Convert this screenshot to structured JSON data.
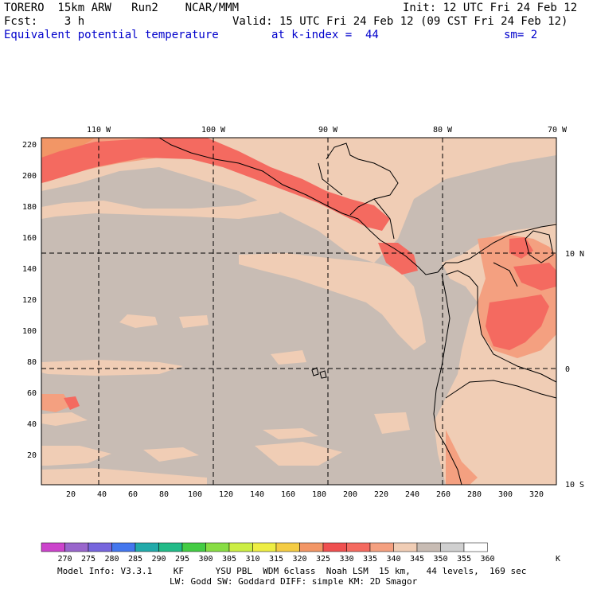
{
  "header": {
    "model": "TORERO  15km ARW   Run2    NCAR/MMM",
    "init": "Init: 12 UTC Fri 24 Feb 12",
    "fcst": "Fcst:    3 h",
    "valid": "Valid: 15 UTC Fri 24 Feb 12 (09 CST Fri 24 Feb 12)",
    "field": "Equivalent potential temperature",
    "level": "at k-index =  44",
    "smooth": "sm= 2"
  },
  "map": {
    "lon_labels": [
      "110 W",
      "100 W",
      "90 W",
      "80 W",
      "70 W"
    ],
    "lat_labels": [
      "10 N",
      "0",
      "10 S"
    ],
    "x_ticks": [
      "20",
      "40",
      "60",
      "80",
      "100",
      "120",
      "140",
      "160",
      "180",
      "200",
      "220",
      "240",
      "260",
      "280",
      "300",
      "320"
    ],
    "y_ticks": [
      "20",
      "40",
      "60",
      "80",
      "100",
      "120",
      "140",
      "160",
      "180",
      "200",
      "220"
    ],
    "colors": {
      "background": "#c8bcb4",
      "light": "#f0cdb5",
      "medium": "#f4a080",
      "warm": "#f46a60",
      "hot": "#ef5050",
      "orange": "#f29666"
    }
  },
  "colorbar": {
    "labels": [
      "270",
      "275",
      "280",
      "285",
      "290",
      "295",
      "300",
      "305",
      "310",
      "315",
      "320",
      "325",
      "330",
      "335",
      "340",
      "345",
      "350",
      "355",
      "360"
    ],
    "unit": "K",
    "colors": [
      "#cc44cc",
      "#9966cc",
      "#7766dd",
      "#4477ee",
      "#22aaaa",
      "#22bb88",
      "#44cc44",
      "#88dd44",
      "#ccee44",
      "#eeee44",
      "#f4cc44",
      "#f29666",
      "#ef5050",
      "#f46a60",
      "#f4a080",
      "#f0cdb5",
      "#c8bcb4",
      "#d0d0d0",
      "#ffffff"
    ]
  },
  "footer": {
    "line1": "Model Info: V3.3.1    KF      YSU PBL  WDM 6class  Noah LSM  15 km,   44 levels,  169 sec",
    "line2": "LW: Godd SW: Goddard DIFF: simple KM: 2D Smagor"
  }
}
